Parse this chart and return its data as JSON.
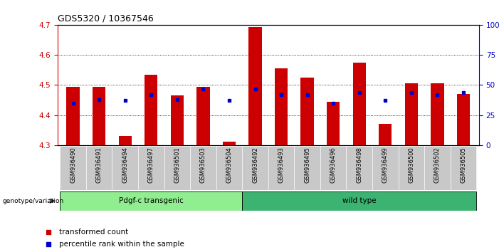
{
  "title": "GDS5320 / 10367546",
  "samples": [
    "GSM936490",
    "GSM936491",
    "GSM936494",
    "GSM936497",
    "GSM936501",
    "GSM936503",
    "GSM936504",
    "GSM936492",
    "GSM936493",
    "GSM936495",
    "GSM936496",
    "GSM936498",
    "GSM936499",
    "GSM936500",
    "GSM936502",
    "GSM936505"
  ],
  "transformed_count": [
    4.495,
    4.495,
    4.33,
    4.535,
    4.465,
    4.495,
    4.31,
    4.695,
    4.555,
    4.525,
    4.445,
    4.575,
    4.37,
    4.505,
    4.505,
    4.47
  ],
  "percentile_rank_pct": [
    35,
    38,
    37,
    42,
    38,
    47,
    37,
    47,
    42,
    42,
    35,
    44,
    37,
    44,
    42,
    44
  ],
  "groups": [
    {
      "label": "Pdgf-c transgenic",
      "start": 0,
      "end": 7,
      "color": "#90EE90"
    },
    {
      "label": "wild type",
      "start": 7,
      "end": 16,
      "color": "#3CB371"
    }
  ],
  "ylim_left": [
    4.3,
    4.7
  ],
  "ylim_right": [
    0,
    100
  ],
  "yticks_left": [
    4.3,
    4.4,
    4.5,
    4.6,
    4.7
  ],
  "yticks_right": [
    0,
    25,
    50,
    75,
    100
  ],
  "bar_color": "#CC0000",
  "percentile_color": "#0000CC",
  "background_color": "#FFFFFF",
  "bar_width": 0.5,
  "base_value": 4.3,
  "legend_tc_label": "transformed count",
  "legend_pr_label": "percentile rank within the sample",
  "genotype_label": "genotype/variation",
  "tick_color_left": "#CC0000",
  "tick_color_right": "#0000CC"
}
